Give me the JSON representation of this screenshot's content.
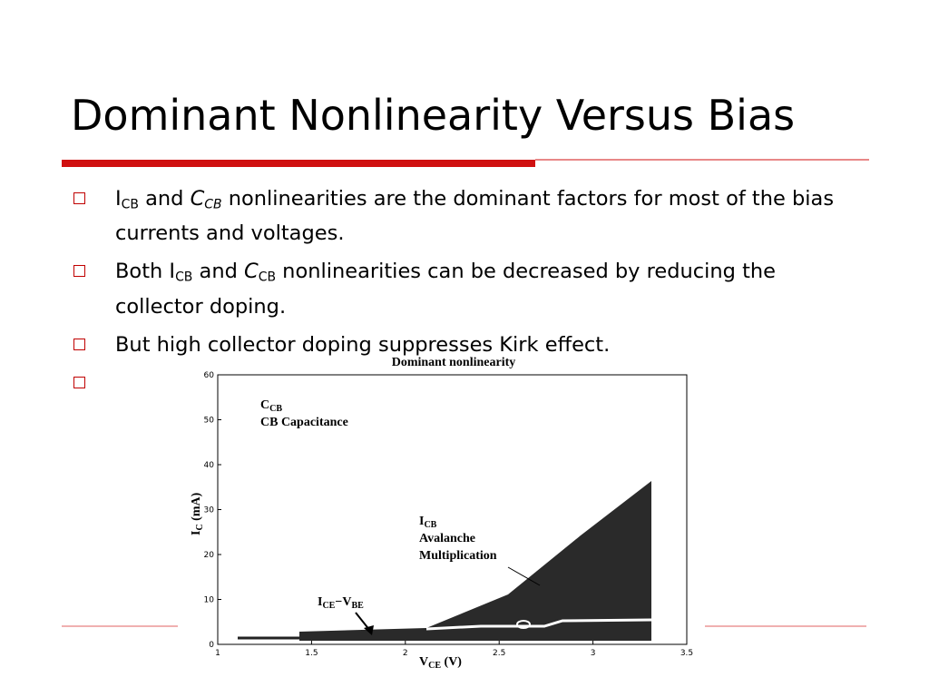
{
  "header": {
    "title": "Dominant Nonlinearity Versus Bias"
  },
  "bullets": [
    [
      {
        "text": "I"
      },
      {
        "sub": "CB"
      },
      {
        "text": " and "
      },
      {
        "text": "C",
        "italic": true
      },
      {
        "sub": "CB",
        "italic": true
      },
      {
        "text": " nonlinearities are the dominant factors for most of the bias currents and voltages."
      }
    ],
    [
      {
        "text": "Both I"
      },
      {
        "sub": "CB"
      },
      {
        "text": " and "
      },
      {
        "text": "C",
        "italic": true
      },
      {
        "sub": "CB"
      },
      {
        "text": " nonlinearities can be decreased by reducing the collector doping."
      }
    ],
    [
      {
        "text": "But high collector doping suppresses Kirk effect."
      }
    ],
    []
  ],
  "figure": {
    "title": "Dominant nonlinearity",
    "x_label": [
      {
        "text": "V"
      },
      {
        "sub": "CE"
      },
      {
        "text": " (V)"
      }
    ],
    "y_label": [
      {
        "text": "I"
      },
      {
        "sub": "C"
      },
      {
        "text": " (mA)"
      }
    ],
    "xlim": [
      1,
      3.5
    ],
    "ylim": [
      0,
      60
    ],
    "xticks": [
      1,
      1.5,
      2,
      2.5,
      3,
      3.5
    ],
    "yticks": [
      0,
      10,
      20,
      30,
      40,
      50,
      60
    ],
    "annotations": [
      [
        [
          {
            "text": "C"
          },
          {
            "sub": "CB"
          }
        ],
        [
          {
            "text": "CB Capacitance"
          }
        ]
      ],
      [
        [
          {
            "text": "I"
          },
          {
            "sub": "CB"
          }
        ],
        [
          {
            "text": "Avalanche"
          }
        ],
        [
          {
            "text": "Multiplication"
          }
        ]
      ],
      [
        [
          {
            "text": "I"
          },
          {
            "sub": "CE"
          },
          {
            "text": "−V"
          },
          {
            "sub": "BE"
          }
        ]
      ]
    ]
  }
}
